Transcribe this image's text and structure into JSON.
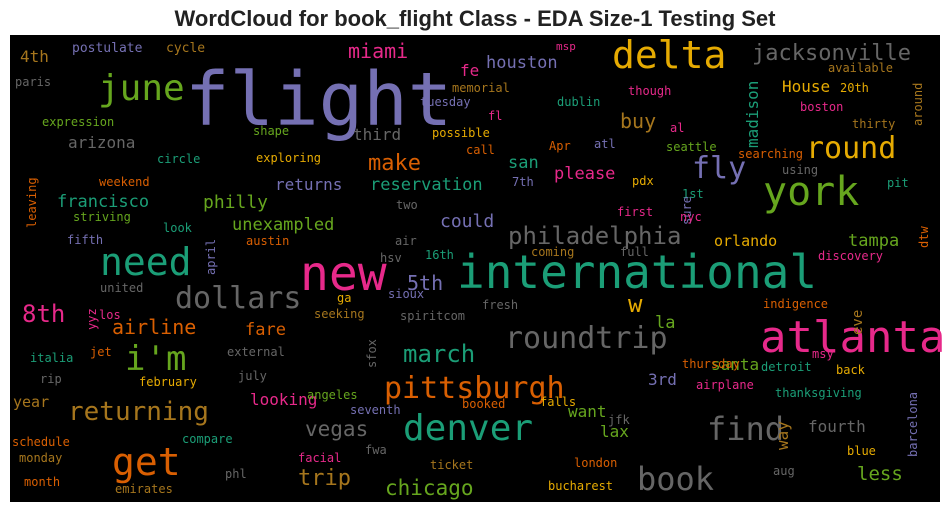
{
  "chart_data": {
    "type": "wordcloud",
    "title": "WordCloud for book_flight Class - EDA Size-1 Testing Set",
    "background": "#000000",
    "words": [
      {
        "text": "flight",
        "color": "#7570b3"
      },
      {
        "text": "international",
        "color": "#1b9e77"
      },
      {
        "text": "new",
        "color": "#e7298a"
      },
      {
        "text": "atlanta",
        "color": "#e7298a"
      },
      {
        "text": "york",
        "color": "#66a61e"
      },
      {
        "text": "delta",
        "color": "#e6ab02"
      },
      {
        "text": "need",
        "color": "#1b9e77"
      },
      {
        "text": "june",
        "color": "#66a61e"
      },
      {
        "text": "denver",
        "color": "#1b9e77"
      },
      {
        "text": "pittsburgh",
        "color": "#d95f02"
      },
      {
        "text": "roundtrip",
        "color": "#666666"
      },
      {
        "text": "dollars",
        "color": "#666666"
      },
      {
        "text": "get",
        "color": "#d95f02"
      },
      {
        "text": "book",
        "color": "#666666"
      },
      {
        "text": "find",
        "color": "#666666"
      },
      {
        "text": "i'm",
        "color": "#66a61e"
      },
      {
        "text": "round",
        "color": "#e6ab02"
      },
      {
        "text": "jacksonville",
        "color": "#666666"
      },
      {
        "text": "fly",
        "color": "#7570b3"
      },
      {
        "text": "returning",
        "color": "#a6761d"
      },
      {
        "text": "philadelphia",
        "color": "#666666"
      },
      {
        "text": "march",
        "color": "#1b9e77"
      },
      {
        "text": "make",
        "color": "#d95f02"
      },
      {
        "text": "miami",
        "color": "#e7298a"
      },
      {
        "text": "8th",
        "color": "#e7298a"
      },
      {
        "text": "houston",
        "color": "#7570b3"
      },
      {
        "text": "vegas",
        "color": "#666666"
      },
      {
        "text": "chicago",
        "color": "#66a61e"
      },
      {
        "text": "trip",
        "color": "#a6761d"
      },
      {
        "text": "airline",
        "color": "#d95f02"
      },
      {
        "text": "fare",
        "color": "#d95f02"
      },
      {
        "text": "5th",
        "color": "#7570b3"
      },
      {
        "text": "w",
        "color": "#e6ab02"
      },
      {
        "text": "buy",
        "color": "#a6761d"
      },
      {
        "text": "san",
        "color": "#1b9e77"
      },
      {
        "text": "reservation",
        "color": "#1b9e77"
      },
      {
        "text": "please",
        "color": "#e7298a"
      },
      {
        "text": "francisco",
        "color": "#1b9e77"
      },
      {
        "text": "philly",
        "color": "#66a61e"
      },
      {
        "text": "unexampled",
        "color": "#66a61e"
      },
      {
        "text": "returns",
        "color": "#7570b3"
      },
      {
        "text": "could",
        "color": "#7570b3"
      },
      {
        "text": "orlando",
        "color": "#e6ab02"
      },
      {
        "text": "tampa",
        "color": "#66a61e"
      },
      {
        "text": "la",
        "color": "#66a61e"
      },
      {
        "text": "santa",
        "color": "#66a61e"
      },
      {
        "text": "want",
        "color": "#66a61e"
      },
      {
        "text": "lax",
        "color": "#66a61e"
      },
      {
        "text": "3rd",
        "color": "#7570b3"
      },
      {
        "text": "fourth",
        "color": "#666666"
      },
      {
        "text": "less",
        "color": "#66a61e"
      },
      {
        "text": "looking",
        "color": "#e7298a"
      },
      {
        "text": "arizona",
        "color": "#666666"
      },
      {
        "text": "third",
        "color": "#666666"
      },
      {
        "text": "4th",
        "color": "#a6761d"
      },
      {
        "text": "fe",
        "color": "#e7298a"
      },
      {
        "text": "year",
        "color": "#a6761d"
      },
      {
        "text": "House",
        "color": "#e6ab02"
      },
      {
        "text": "madison",
        "color": "#1b9e77"
      },
      {
        "text": "way",
        "color": "#a6761d"
      },
      {
        "text": "eve",
        "color": "#a6761d"
      },
      {
        "text": "postulate",
        "color": "#7570b3"
      },
      {
        "text": "cycle",
        "color": "#a6761d"
      },
      {
        "text": "paris",
        "color": "#666666"
      },
      {
        "text": "memorial",
        "color": "#a6761d"
      },
      {
        "text": "tuesday",
        "color": "#7570b3"
      },
      {
        "text": "msp",
        "color": "#e7298a"
      },
      {
        "text": "dublin",
        "color": "#1b9e77"
      },
      {
        "text": "though",
        "color": "#e7298a"
      },
      {
        "text": "available",
        "color": "#a6761d"
      },
      {
        "text": "20th",
        "color": "#e6ab02"
      },
      {
        "text": "boston",
        "color": "#e7298a"
      },
      {
        "text": "around",
        "color": "#a6761d"
      },
      {
        "text": "expression",
        "color": "#66a61e"
      },
      {
        "text": "shape",
        "color": "#66a61e"
      },
      {
        "text": "possible",
        "color": "#e6ab02"
      },
      {
        "text": "fl",
        "color": "#e7298a"
      },
      {
        "text": "al",
        "color": "#e7298a"
      },
      {
        "text": "thirty",
        "color": "#a6761d"
      },
      {
        "text": "circle",
        "color": "#1b9e77"
      },
      {
        "text": "exploring",
        "color": "#e6ab02"
      },
      {
        "text": "call",
        "color": "#d95f02"
      },
      {
        "text": "Apr",
        "color": "#d95f02"
      },
      {
        "text": "atl",
        "color": "#7570b3"
      },
      {
        "text": "seattle",
        "color": "#66a61e"
      },
      {
        "text": "searching",
        "color": "#d95f02"
      },
      {
        "text": "using",
        "color": "#666666"
      },
      {
        "text": "pit",
        "color": "#1b9e77"
      },
      {
        "text": "weekend",
        "color": "#d95f02"
      },
      {
        "text": "7th",
        "color": "#7570b3"
      },
      {
        "text": "pdx",
        "color": "#e6ab02"
      },
      {
        "text": "1st",
        "color": "#1b9e77"
      },
      {
        "text": "sure",
        "color": "#7570b3"
      },
      {
        "text": "leaving",
        "color": "#d95f02"
      },
      {
        "text": "striving",
        "color": "#66a61e"
      },
      {
        "text": "two",
        "color": "#666666"
      },
      {
        "text": "first",
        "color": "#e7298a"
      },
      {
        "text": "nyc",
        "color": "#e7298a"
      },
      {
        "text": "look",
        "color": "#1b9e77"
      },
      {
        "text": "fifth",
        "color": "#7570b3"
      },
      {
        "text": "austin",
        "color": "#d95f02"
      },
      {
        "text": "air",
        "color": "#666666"
      },
      {
        "text": "16th",
        "color": "#1b9e77"
      },
      {
        "text": "coming",
        "color": "#a6761d"
      },
      {
        "text": "full",
        "color": "#666666"
      },
      {
        "text": "discovery",
        "color": "#e7298a"
      },
      {
        "text": "dtw",
        "color": "#d95f02"
      },
      {
        "text": "april",
        "color": "#7570b3"
      },
      {
        "text": "hsv",
        "color": "#666666"
      },
      {
        "text": "united",
        "color": "#666666"
      },
      {
        "text": "ga",
        "color": "#e6ab02"
      },
      {
        "text": "sioux",
        "color": "#7570b3"
      },
      {
        "text": "fresh",
        "color": "#666666"
      },
      {
        "text": "los",
        "color": "#e7298a"
      },
      {
        "text": "yyz",
        "color": "#e7298a"
      },
      {
        "text": "seeking",
        "color": "#a6761d"
      },
      {
        "text": "spiritcom",
        "color": "#666666"
      },
      {
        "text": "indigence",
        "color": "#d95f02"
      },
      {
        "text": "italia",
        "color": "#1b9e77"
      },
      {
        "text": "jet",
        "color": "#d95f02"
      },
      {
        "text": "external",
        "color": "#666666"
      },
      {
        "text": "sfox",
        "color": "#666666"
      },
      {
        "text": "msy",
        "color": "#e7298a"
      },
      {
        "text": "thursday",
        "color": "#d95f02"
      },
      {
        "text": "back",
        "color": "#e6ab02"
      },
      {
        "text": "rip",
        "color": "#666666"
      },
      {
        "text": "february",
        "color": "#e6ab02"
      },
      {
        "text": "july",
        "color": "#666666"
      },
      {
        "text": "angeles",
        "color": "#66a61e"
      },
      {
        "text": "detroit",
        "color": "#1b9e77"
      },
      {
        "text": "airplane",
        "color": "#e7298a"
      },
      {
        "text": "thanksgiving",
        "color": "#1b9e77"
      },
      {
        "text": "seventh",
        "color": "#7570b3"
      },
      {
        "text": "booked",
        "color": "#d95f02"
      },
      {
        "text": "falls",
        "color": "#e6ab02"
      },
      {
        "text": "jfk",
        "color": "#666666"
      },
      {
        "text": "barcelona",
        "color": "#7570b3"
      },
      {
        "text": "schedule",
        "color": "#d95f02"
      },
      {
        "text": "compare",
        "color": "#1b9e77"
      },
      {
        "text": "monday",
        "color": "#a6761d"
      },
      {
        "text": "facial",
        "color": "#e7298a"
      },
      {
        "text": "fwa",
        "color": "#666666"
      },
      {
        "text": "blue",
        "color": "#e6ab02"
      },
      {
        "text": "month",
        "color": "#d95f02"
      },
      {
        "text": "emirates",
        "color": "#a6761d"
      },
      {
        "text": "phl",
        "color": "#666666"
      },
      {
        "text": "ticket",
        "color": "#a6761d"
      },
      {
        "text": "london",
        "color": "#d95f02"
      },
      {
        "text": "bucharest",
        "color": "#e6ab02"
      },
      {
        "text": "aug",
        "color": "#666666"
      }
    ]
  }
}
